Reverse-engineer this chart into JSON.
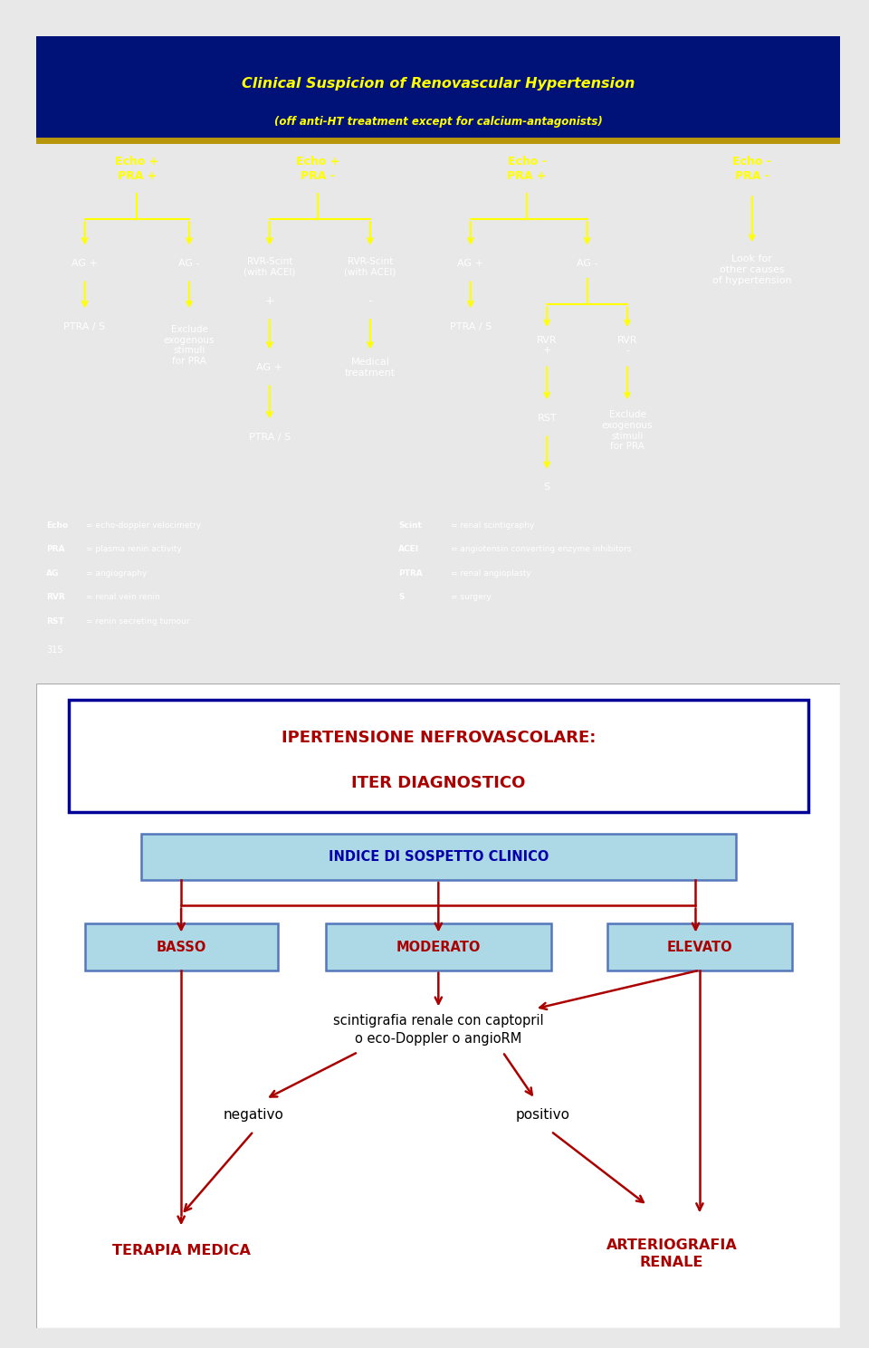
{
  "panel1_bg": "#0044BB",
  "panel1_header_bg": "#001177",
  "panel1_title": "Clinical Suspicion of Renovascular Hypertension",
  "panel1_subtitle": "(off anti-HT treatment except for calcium-antagonists)",
  "panel1_title_color": "#FFFF00",
  "panel1_text_color": "#FFFFFF",
  "panel1_arrow_color": "#FFFF00",
  "panel1_gold_line": "#B8960C",
  "panel2_bg": "#FFFFFF",
  "panel2_title_line1": "IPERTENSIONE NEFROVASCOLARE:",
  "panel2_title_line2": "ITER DIAGNOSTICO",
  "panel2_title_color": "#CC0000",
  "panel2_title_border": "#000099",
  "panel2_arrow_color": "#AA0000",
  "panel2_box_bg": "#ADD8E6",
  "panel2_box_border": "#5577BB",
  "panel2_text_color": "#000000",
  "page_number": "315",
  "fig_bg": "#E8E8E8"
}
